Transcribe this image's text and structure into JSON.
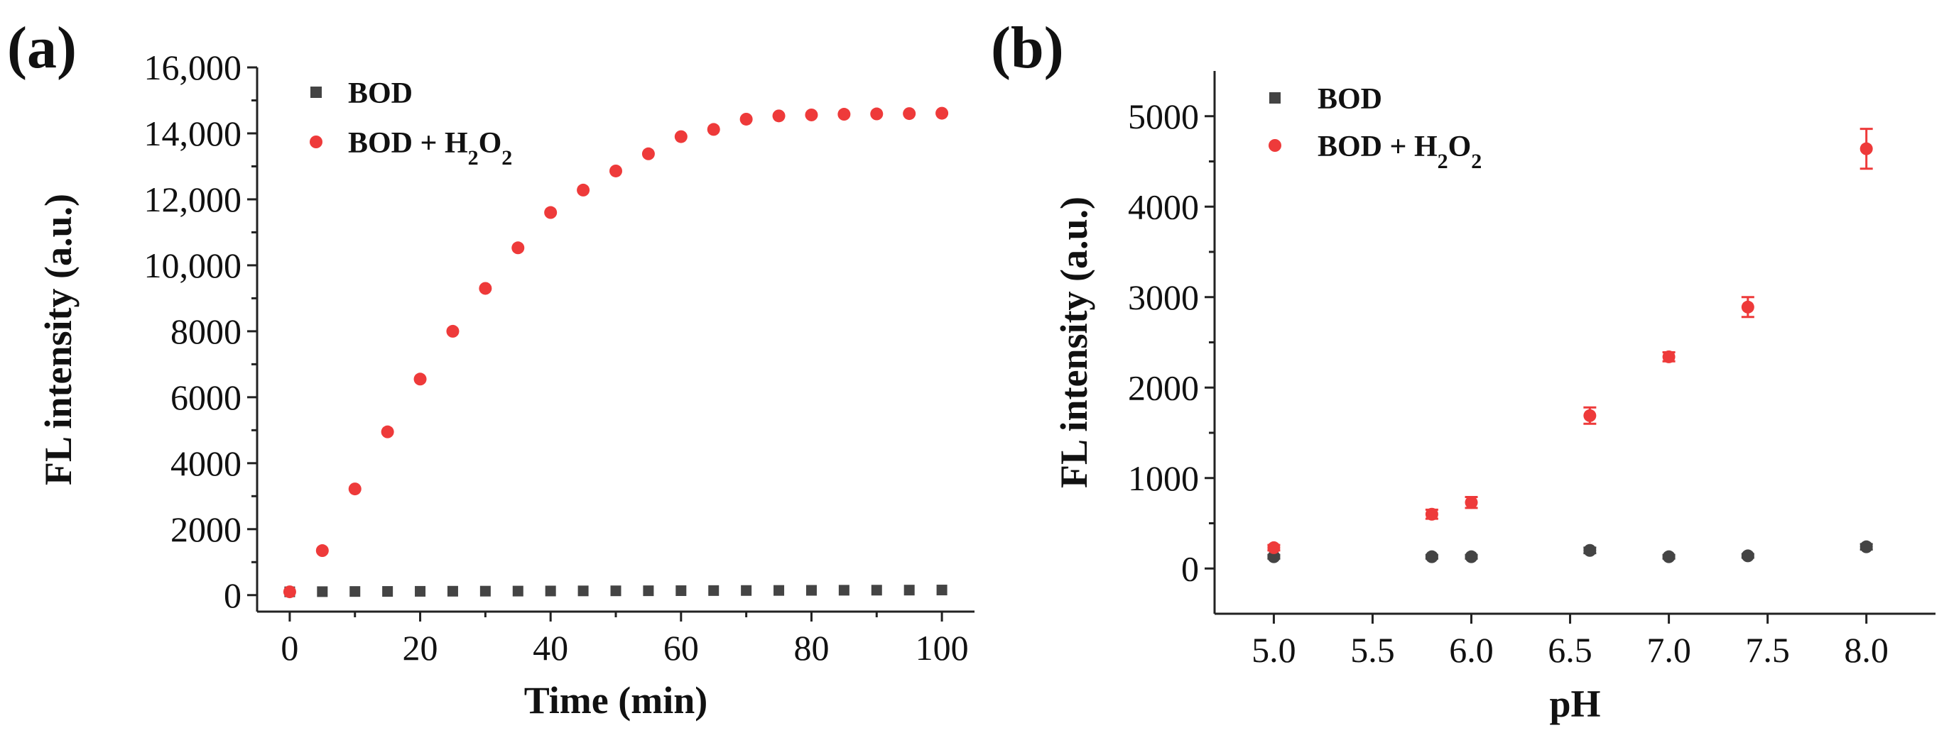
{
  "chart_data": [
    {
      "panel": "(a)",
      "type": "scatter",
      "xlabel": "Time (min)",
      "ylabel": "FL intensity (a.u.)",
      "xlim": [
        -5,
        105
      ],
      "ylim": [
        -500,
        16000
      ],
      "xticks": [
        0,
        20,
        40,
        60,
        80,
        100
      ],
      "xtick_labels": [
        "0",
        "20",
        "40",
        "60",
        "80",
        "100"
      ],
      "yticks": [
        0,
        2000,
        4000,
        6000,
        8000,
        10000,
        12000,
        14000,
        16000
      ],
      "ytick_labels": [
        "0",
        "2000",
        "4000",
        "6000",
        "8000",
        "10,000",
        "12,000",
        "14,000",
        "16,000"
      ],
      "legend_position": "top-left",
      "series": [
        {
          "name": "BOD",
          "marker": "square",
          "color": "#444444",
          "x": [
            0,
            5,
            10,
            15,
            20,
            25,
            30,
            35,
            40,
            45,
            50,
            55,
            60,
            65,
            70,
            75,
            80,
            85,
            90,
            95,
            100
          ],
          "y": [
            100,
            105,
            110,
            112,
            115,
            118,
            120,
            122,
            125,
            128,
            130,
            132,
            135,
            138,
            140,
            142,
            145,
            148,
            150,
            152,
            155
          ]
        },
        {
          "name": "BOD + H2O2",
          "marker": "circle",
          "color": "#ee3a3a",
          "x": [
            0,
            5,
            10,
            15,
            20,
            25,
            30,
            35,
            40,
            45,
            50,
            55,
            60,
            65,
            70,
            75,
            80,
            85,
            90,
            95,
            100
          ],
          "y": [
            100,
            1350,
            3220,
            4950,
            6550,
            8000,
            9300,
            10530,
            11600,
            12280,
            12860,
            13380,
            13900,
            14120,
            14430,
            14530,
            14560,
            14580,
            14590,
            14600,
            14610
          ]
        }
      ]
    },
    {
      "panel": "(b)",
      "type": "scatter",
      "xlabel": "pH",
      "ylabel": "FL intensity (a.u.)",
      "xlim": [
        4.7,
        8.35
      ],
      "ylim": [
        -500,
        5500
      ],
      "xticks": [
        5.0,
        5.5,
        6.0,
        6.5,
        7.0,
        7.5,
        8.0
      ],
      "xtick_labels": [
        "5.0",
        "5.5",
        "6.0",
        "6.5",
        "7.0",
        "7.5",
        "8.0"
      ],
      "yticks": [
        0,
        1000,
        2000,
        3000,
        4000,
        5000
      ],
      "ytick_labels": [
        "0",
        "1000",
        "2000",
        "3000",
        "4000",
        "5000"
      ],
      "legend_position": "top-left",
      "series": [
        {
          "name": "BOD",
          "marker": "circle",
          "color": "#444444",
          "x": [
            5.0,
            5.8,
            6.0,
            6.6,
            7.0,
            7.4,
            8.0
          ],
          "y": [
            130,
            130,
            130,
            200,
            130,
            140,
            240
          ],
          "err": [
            20,
            20,
            20,
            30,
            20,
            20,
            30
          ]
        },
        {
          "name": "BOD + H2O2",
          "marker": "circle",
          "color": "#ee3a3a",
          "x": [
            5.0,
            5.8,
            6.0,
            6.6,
            7.0,
            7.4,
            8.0
          ],
          "y": [
            230,
            600,
            730,
            1690,
            2340,
            2890,
            4640
          ],
          "err": [
            30,
            50,
            60,
            90,
            50,
            110,
            220
          ]
        }
      ]
    }
  ]
}
